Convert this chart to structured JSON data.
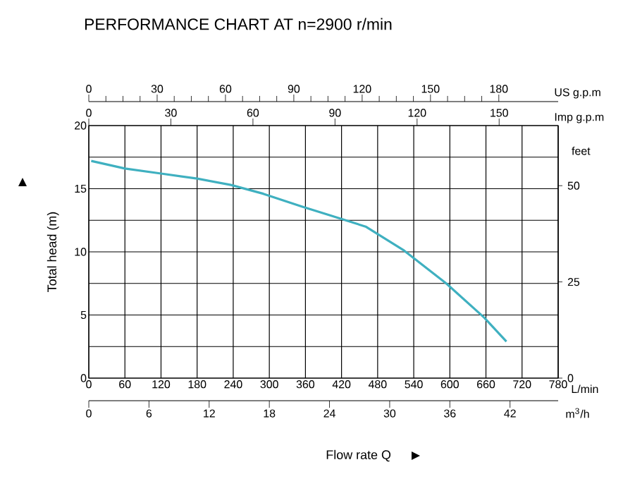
{
  "chart_data": {
    "type": "line",
    "title": "PERFORMANCE CHART AT n=2900 r/min",
    "xlabel": "Flow rate Q",
    "ylabel": "Total head (m)",
    "y2label": "feet",
    "x2label": "US g.p.m",
    "annotations": [
      "L/min",
      "Imp g.p.m",
      "m$^{3}$/h",
      "0",
      "30",
      "60",
      "90",
      "120",
      "150",
      "0",
      "6",
      "12",
      "18",
      "24",
      "30",
      "36",
      "42"
    ],
    "x": [
      4,
      60,
      120,
      180,
      236,
      290,
      353,
      400,
      460,
      524,
      594,
      657,
      694
    ],
    "series": [
      {
        "color": "#3fb0c0",
        "values": [
          17.2,
          16.6,
          16.2,
          15.8,
          15.3,
          14.6,
          13.6,
          12.9,
          12.0,
          10.1,
          7.5,
          4.8,
          2.9
        ]
      }
    ],
    "xlim": [
      0,
      780
    ],
    "xticks": [
      0,
      60,
      120,
      180,
      240,
      300,
      360,
      420,
      480,
      540,
      600,
      660,
      720,
      780
    ],
    "ylim": [
      0,
      20
    ],
    "yticks": [
      0,
      5,
      10,
      15,
      20
    ],
    "y2lim": [
      0,
      65.62
    ],
    "y2ticks": [
      0,
      25,
      50
    ],
    "x2lim": [
      0,
      206.06
    ],
    "x2ticks": [
      0,
      30,
      60,
      90,
      120,
      150,
      180
    ],
    "grid": true
  }
}
